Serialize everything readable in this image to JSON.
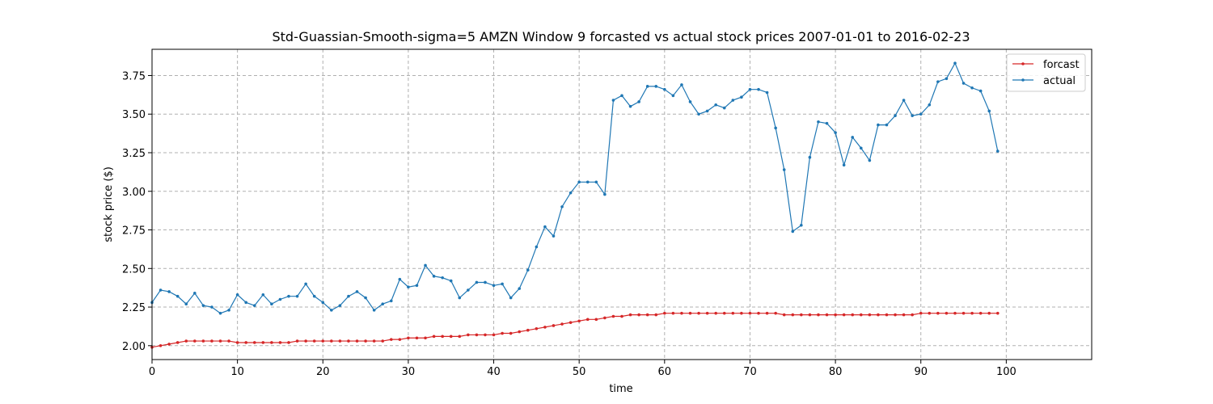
{
  "chart_data": {
    "type": "line",
    "title": "Std-Guassian-Smooth-sigma=5 AMZN Window 9 forcasted vs actual stock prices 2007-01-01 to 2016-02-23",
    "xlabel": "time",
    "ylabel": "stock price ($)",
    "xlim": [
      0,
      110
    ],
    "ylim": [
      1.91,
      3.92
    ],
    "x_ticks": [
      0,
      10,
      20,
      30,
      40,
      50,
      60,
      70,
      80,
      90,
      100
    ],
    "y_ticks": [
      "2.00",
      "2.25",
      "2.50",
      "2.75",
      "3.00",
      "3.25",
      "3.50",
      "3.75"
    ],
    "grid": true,
    "legend_position": "top-right",
    "series": [
      {
        "name": "forcast",
        "color": "#d62728",
        "x_start": 0,
        "values": [
          1.99,
          2.0,
          2.01,
          2.02,
          2.03,
          2.03,
          2.03,
          2.03,
          2.03,
          2.03,
          2.02,
          2.02,
          2.02,
          2.02,
          2.02,
          2.02,
          2.02,
          2.03,
          2.03,
          2.03,
          2.03,
          2.03,
          2.03,
          2.03,
          2.03,
          2.03,
          2.03,
          2.03,
          2.04,
          2.04,
          2.05,
          2.05,
          2.05,
          2.06,
          2.06,
          2.06,
          2.06,
          2.07,
          2.07,
          2.07,
          2.07,
          2.08,
          2.08,
          2.09,
          2.1,
          2.11,
          2.12,
          2.13,
          2.14,
          2.15,
          2.16,
          2.17,
          2.17,
          2.18,
          2.19,
          2.19,
          2.2,
          2.2,
          2.2,
          2.2,
          2.21,
          2.21,
          2.21,
          2.21,
          2.21,
          2.21,
          2.21,
          2.21,
          2.21,
          2.21,
          2.21,
          2.21,
          2.21,
          2.21,
          2.2,
          2.2,
          2.2,
          2.2,
          2.2,
          2.2,
          2.2,
          2.2,
          2.2,
          2.2,
          2.2,
          2.2,
          2.2,
          2.2,
          2.2,
          2.2,
          2.21,
          2.21,
          2.21,
          2.21,
          2.21,
          2.21,
          2.21,
          2.21,
          2.21,
          2.21
        ]
      },
      {
        "name": "actual",
        "color": "#1f77b4",
        "x_start": 0,
        "values": [
          2.28,
          2.36,
          2.35,
          2.32,
          2.27,
          2.34,
          2.26,
          2.25,
          2.21,
          2.23,
          2.33,
          2.28,
          2.26,
          2.33,
          2.27,
          2.3,
          2.32,
          2.32,
          2.4,
          2.32,
          2.28,
          2.23,
          2.26,
          2.32,
          2.35,
          2.31,
          2.23,
          2.27,
          2.29,
          2.43,
          2.38,
          2.39,
          2.52,
          2.45,
          2.44,
          2.42,
          2.31,
          2.36,
          2.41,
          2.41,
          2.39,
          2.4,
          2.31,
          2.37,
          2.49,
          2.64,
          2.77,
          2.71,
          2.9,
          2.99,
          3.06,
          3.06,
          3.06,
          2.98,
          3.59,
          3.62,
          3.55,
          3.58,
          3.68,
          3.68,
          3.66,
          3.62,
          3.69,
          3.58,
          3.5,
          3.52,
          3.56,
          3.54,
          3.59,
          3.61,
          3.66,
          3.66,
          3.64,
          3.41,
          3.14,
          2.74,
          2.78,
          3.22,
          3.45,
          3.44,
          3.38,
          3.17,
          3.35,
          3.28,
          3.2,
          3.43,
          3.43,
          3.49,
          3.59,
          3.49,
          3.5,
          3.56,
          3.71,
          3.73,
          3.83,
          3.7,
          3.67,
          3.65,
          3.52,
          3.26
        ]
      }
    ]
  }
}
